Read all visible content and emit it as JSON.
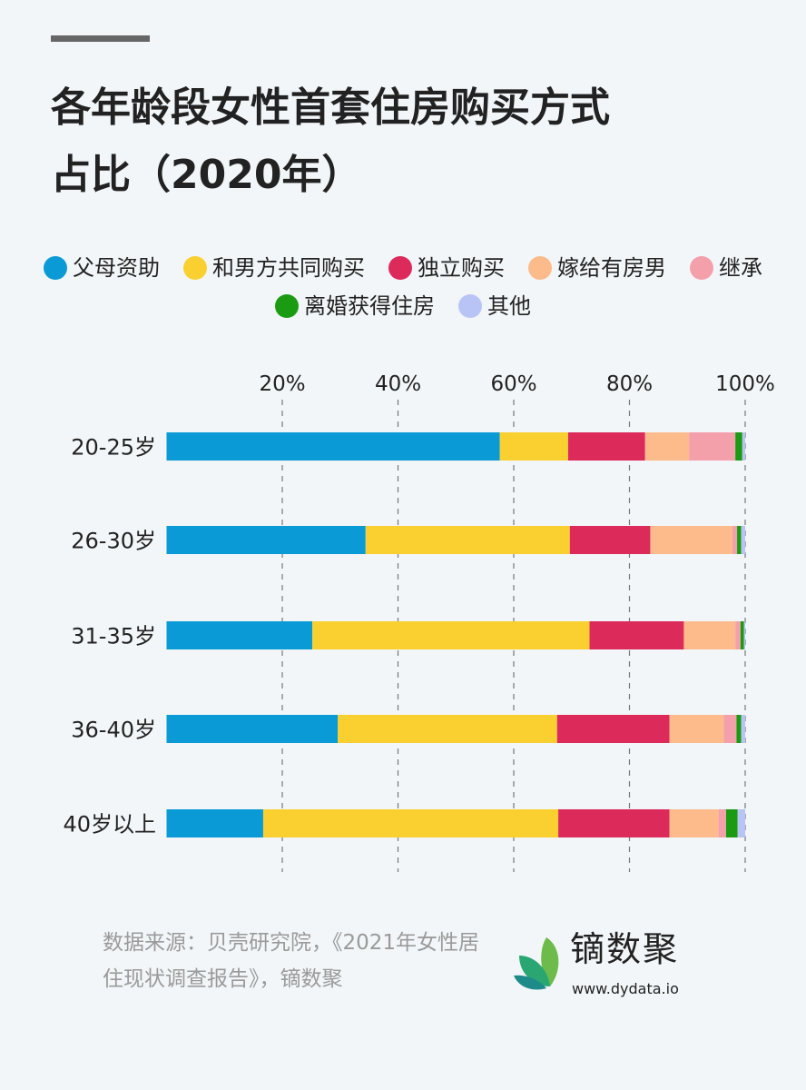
{
  "title_line1": "各年龄段女性首套住房购买方式",
  "title_line2": "占比（2020年）",
  "chart_data": {
    "type": "bar",
    "orientation": "horizontal",
    "stacked": true,
    "categories": [
      "20-25岁",
      "26-30岁",
      "31-35岁",
      "36-40岁",
      "40岁以上"
    ],
    "xlim": [
      0,
      100
    ],
    "x_ticks": [
      20,
      40,
      60,
      80,
      100
    ],
    "x_tick_labels": [
      "20%",
      "40%",
      "60%",
      "80%",
      "100%"
    ],
    "grid": "vertical dashed",
    "legend_position": "top",
    "series": [
      {
        "name": "父母资助",
        "color": "#0a9bd6",
        "values": [
          57.6,
          34.4,
          25.2,
          29.6,
          16.7
        ]
      },
      {
        "name": "和男方共同购买",
        "color": "#f9d030",
        "values": [
          11.8,
          35.3,
          47.9,
          37.9,
          51.0
        ]
      },
      {
        "name": "独立购买",
        "color": "#dc2a5b",
        "values": [
          13.3,
          13.9,
          16.3,
          19.4,
          19.2
        ]
      },
      {
        "name": "嫁给有房男",
        "color": "#fdbb8c",
        "values": [
          7.6,
          14.2,
          8.9,
          9.4,
          8.5
        ]
      },
      {
        "name": "继承",
        "color": "#f4a0ab",
        "values": [
          8.0,
          0.8,
          0.9,
          2.2,
          1.3
        ]
      },
      {
        "name": "离婚获得住房",
        "color": "#1a9b12",
        "values": [
          1.2,
          0.7,
          0.6,
          0.8,
          2.0
        ]
      },
      {
        "name": "其他",
        "color": "#b8c4f5",
        "values": [
          0.5,
          0.7,
          0.2,
          0.7,
          1.3
        ]
      }
    ]
  },
  "source": "数据来源：贝壳研究院，《2021年女性居住现状调查报告》，镝数聚",
  "brand": {
    "name": "镝数聚",
    "url": "www.dydata.io"
  }
}
